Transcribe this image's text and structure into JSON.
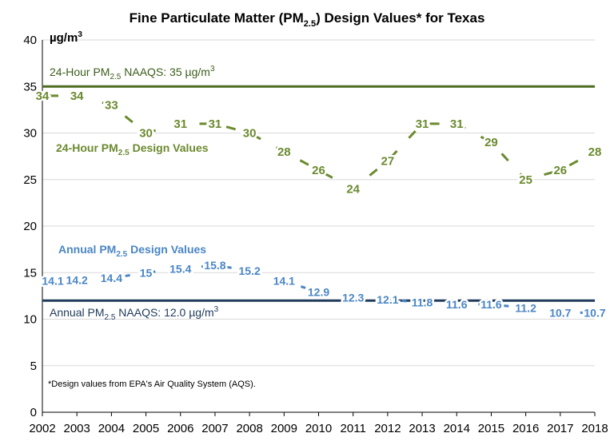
{
  "chart_data": {
    "type": "line",
    "title": {
      "pre": "Fine Particulate Matter (PM",
      "sub": "2.5",
      "post": ") Design Values* for Texas"
    },
    "ylabel": {
      "base": "µg/m",
      "sup": "3"
    },
    "xlabel": "",
    "ylim": [
      0,
      40
    ],
    "yticks": [
      "0",
      "5",
      "10",
      "15",
      "20",
      "25",
      "30",
      "35",
      "40"
    ],
    "x": [
      "2002",
      "2003",
      "2004",
      "2005",
      "2006",
      "2007",
      "2008",
      "2009",
      "2010",
      "2011",
      "2012",
      "2013",
      "2014",
      "2015",
      "2016",
      "2017",
      "2018"
    ],
    "series": [
      {
        "name": "24-Hour PM2.5 Design Values",
        "label": {
          "pre": "24-Hour PM",
          "sub": "2.5",
          "post": " Design Values"
        },
        "color": "#6b8a2f",
        "values": [
          34,
          34,
          33,
          30,
          31,
          31,
          30,
          28,
          26,
          24,
          27,
          31,
          31,
          29,
          25,
          26,
          28
        ],
        "labels": [
          "34",
          "34",
          "33",
          "30",
          "31",
          "31",
          "30",
          "28",
          "26",
          "24",
          "27",
          "31",
          "31",
          "29",
          "25",
          "26",
          "28"
        ]
      },
      {
        "name": "Annual PM2.5 Design Values",
        "label": {
          "pre": "Annual PM",
          "sub": "2.5",
          "post": " Design Values"
        },
        "color": "#4a86c5",
        "values": [
          14.1,
          14.2,
          14.4,
          15,
          15.4,
          15.8,
          15.2,
          14.1,
          12.9,
          12.3,
          12.1,
          11.8,
          11.6,
          11.6,
          11.2,
          10.7,
          10.7
        ],
        "labels": [
          "14.1",
          "14.2",
          "14.4",
          "15",
          "15.4",
          "15.8",
          "15.2",
          "14.1",
          "12.9",
          "12.3",
          "12.1",
          "11.8",
          "11.6",
          "11.6",
          "11.2",
          "10.7",
          "10.7"
        ]
      }
    ],
    "reference_lines": [
      {
        "name": "24-Hour PM2.5 NAAQS",
        "value": 35,
        "color": "#4e6b22",
        "label": {
          "pre": "24-Hour PM",
          "sub": "2.5",
          "post": " NAAQS: 35 µg/m",
          "sup": "3"
        }
      },
      {
        "name": "Annual PM2.5 NAAQS",
        "value": 12.0,
        "color": "#1f3a5a",
        "label": {
          "pre": "Annual PM",
          "sub": "2.5",
          "post": " NAAQS: 12.0 µg/m",
          "sup": "3"
        }
      }
    ],
    "footnote": "*Design values from EPA's Air Quality System (AQS)."
  }
}
